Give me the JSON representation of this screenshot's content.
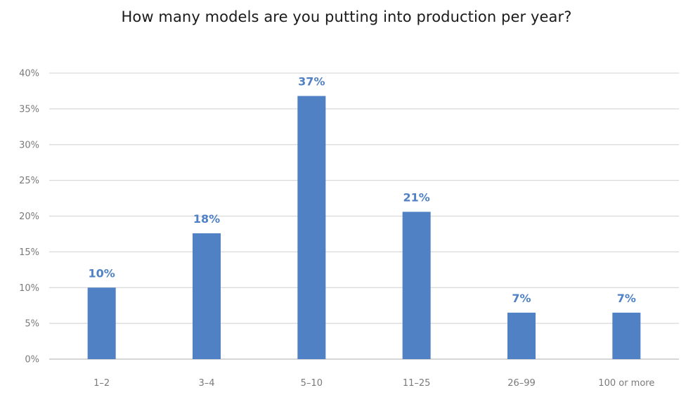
{
  "chart_data": {
    "type": "bar",
    "title": "How many models are you putting into production per year?",
    "xlabel": "",
    "ylabel": "",
    "categories": [
      "1–2",
      "3–4",
      "5–10",
      "11–25",
      "26–99",
      "100 or more"
    ],
    "values": [
      10,
      17.6,
      36.8,
      20.6,
      6.5,
      6.5
    ],
    "data_labels": [
      "10%",
      "18%",
      "37%",
      "21%",
      "7%",
      "7%"
    ],
    "ylim": [
      0,
      40
    ],
    "y_ticks": [
      0,
      5,
      10,
      15,
      20,
      25,
      30,
      35,
      40
    ],
    "y_tick_labels": [
      "0%",
      "5%",
      "10%",
      "15%",
      "20%",
      "25%",
      "30%",
      "35%",
      "40%"
    ],
    "grid": true,
    "legend": "none",
    "bar_color": "#4f81c4",
    "label_color": "#4f81c4"
  }
}
